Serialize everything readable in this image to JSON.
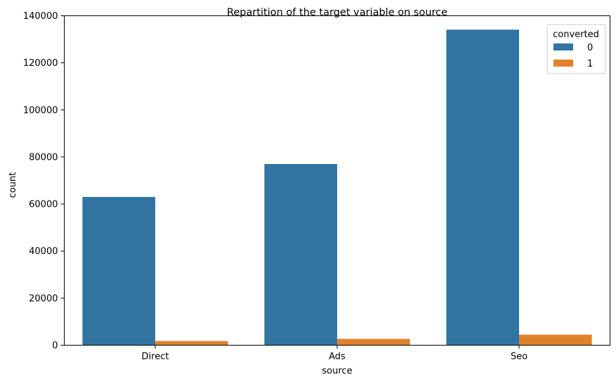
{
  "chart_data": {
    "type": "bar",
    "title": "Repartition of the target variable on source",
    "xlabel": "source",
    "ylabel": "count",
    "categories": [
      "Direct",
      "Ads",
      "Seo"
    ],
    "series": [
      {
        "name": "0",
        "values": [
          63000,
          77000,
          134100
        ],
        "color": "#3274a1"
      },
      {
        "name": "1",
        "values": [
          1800,
          2700,
          4500
        ],
        "color": "#e1812c"
      }
    ],
    "ylim": [
      0,
      140000
    ],
    "yticks": [
      0,
      20000,
      40000,
      60000,
      80000,
      100000,
      120000,
      140000
    ],
    "grid": false,
    "legend": {
      "title": "converted",
      "placement": "top-right"
    }
  }
}
